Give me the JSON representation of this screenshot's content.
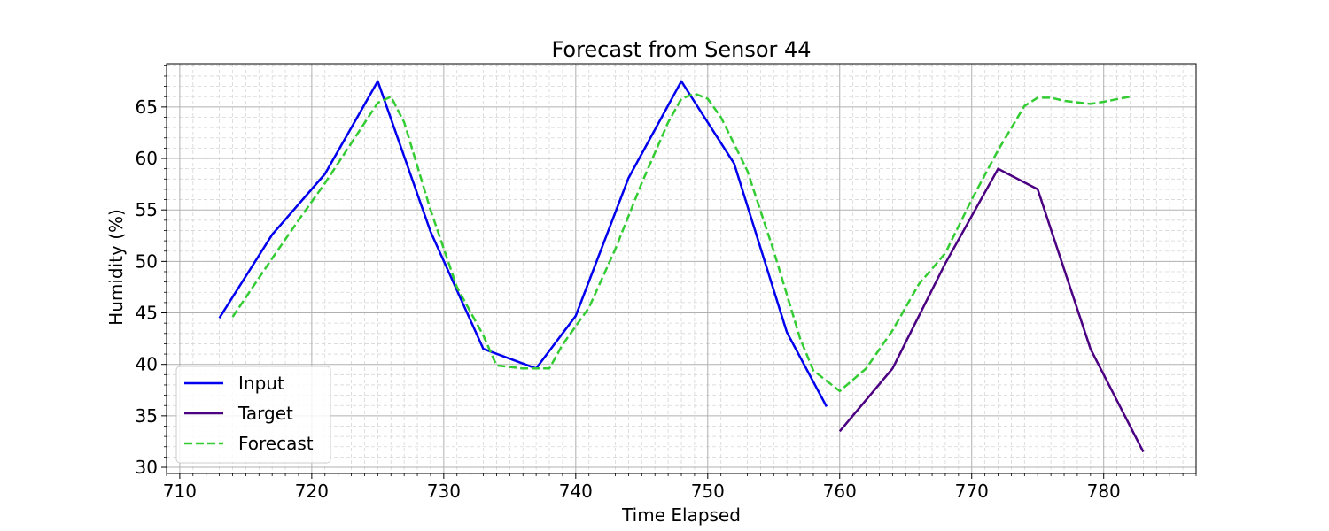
{
  "chart_data": {
    "type": "line",
    "title": "Forecast from Sensor 44",
    "xlabel": "Time Elapsed",
    "ylabel": "Humidity (%)",
    "xlim": [
      709,
      787
    ],
    "ylim": [
      29.4,
      69.2
    ],
    "x_ticks": [
      710,
      720,
      730,
      740,
      750,
      760,
      770,
      780
    ],
    "y_ticks": [
      30,
      35,
      40,
      45,
      50,
      55,
      60,
      65
    ],
    "grid": true,
    "minor_grid": true,
    "legend_position": "lower-left",
    "series": [
      {
        "name": "Input",
        "color": "#0000ee",
        "dash": "solid",
        "points": [
          [
            713,
            44.5
          ],
          [
            717,
            52.6
          ],
          [
            721,
            58.5
          ],
          [
            725,
            67.5
          ],
          [
            729,
            52.9
          ],
          [
            733,
            41.5
          ],
          [
            737,
            39.6
          ],
          [
            740,
            44.7
          ],
          [
            744,
            58.1
          ],
          [
            748,
            67.5
          ],
          [
            752,
            59.5
          ],
          [
            756,
            43.1
          ],
          [
            759,
            35.9
          ]
        ]
      },
      {
        "name": "Target",
        "color": "#4b0082",
        "dash": "solid",
        "points": [
          [
            760,
            33.5
          ],
          [
            764,
            39.6
          ],
          [
            768,
            49.8
          ],
          [
            772,
            59.0
          ],
          [
            775,
            57.0
          ],
          [
            779,
            41.5
          ],
          [
            783,
            31.5
          ]
        ]
      },
      {
        "name": "Forecast",
        "color": "#33cc33",
        "dash": "dashed",
        "points": [
          [
            714,
            44.6
          ],
          [
            717,
            50.3
          ],
          [
            719,
            54.0
          ],
          [
            721,
            57.6
          ],
          [
            723,
            61.5
          ],
          [
            725,
            65.4
          ],
          [
            726,
            66.0
          ],
          [
            727,
            63.5
          ],
          [
            729,
            55.0
          ],
          [
            731,
            47.5
          ],
          [
            733,
            42.8
          ],
          [
            734,
            39.9
          ],
          [
            736,
            39.6
          ],
          [
            738,
            39.6
          ],
          [
            739,
            41.9
          ],
          [
            741,
            45.5
          ],
          [
            743,
            51.2
          ],
          [
            745,
            57.6
          ],
          [
            747,
            63.5
          ],
          [
            748,
            65.8
          ],
          [
            749,
            66.3
          ],
          [
            750,
            65.8
          ],
          [
            751,
            64.0
          ],
          [
            753,
            58.8
          ],
          [
            755,
            51.0
          ],
          [
            757,
            42.5
          ],
          [
            758,
            39.4
          ],
          [
            760,
            37.4
          ],
          [
            762,
            39.6
          ],
          [
            764,
            43.3
          ],
          [
            766,
            47.8
          ],
          [
            768,
            50.8
          ],
          [
            770,
            56.0
          ],
          [
            772,
            60.8
          ],
          [
            774,
            65.1
          ],
          [
            775,
            65.9
          ],
          [
            776,
            65.9
          ],
          [
            777,
            65.6
          ],
          [
            779,
            65.3
          ],
          [
            780,
            65.5
          ],
          [
            782,
            66.0
          ]
        ]
      }
    ]
  }
}
